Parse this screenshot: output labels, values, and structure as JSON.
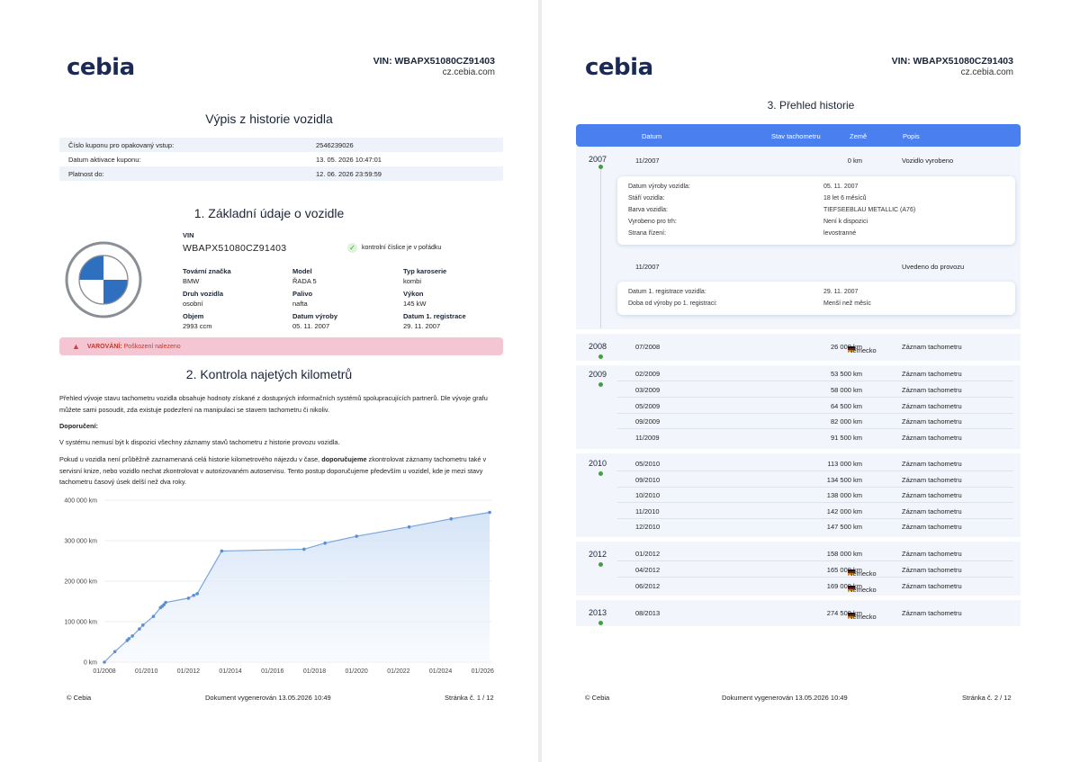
{
  "header": {
    "logo": "cebia",
    "vin_label": "VIN: WBAPX51080CZ91403",
    "url": "cz.cebia.com"
  },
  "page1": {
    "title": "Výpis z historie vozidla",
    "coupon": [
      {
        "key": "Číslo kuponu pro opakovaný vstup:",
        "value": "2546239026"
      },
      {
        "key": "Datum aktivace kuponu:",
        "value": "13. 05. 2026 10:47:01"
      },
      {
        "key": "Platnost do:",
        "value": "12. 06. 2026 23:59:59"
      }
    ],
    "section1_title": "1. Základní údaje o vozidle",
    "vin": {
      "label": "VIN",
      "value": "WBAPX51080CZ91403",
      "check": "kontrolní číslice je v pořádku"
    },
    "specs": [
      {
        "label": "Tovární značka",
        "value": "BMW"
      },
      {
        "label": "Model",
        "value": "ŘADA 5"
      },
      {
        "label": "Typ karoserie",
        "value": "kombi"
      },
      {
        "label": "Druh vozidla",
        "value": "osobní"
      },
      {
        "label": "Palivo",
        "value": "nafta"
      },
      {
        "label": "Výkon",
        "value": "145 kW"
      },
      {
        "label": "Objem",
        "value": "2993 ccm"
      },
      {
        "label": "Datum výroby",
        "value": "05. 11. 2007"
      },
      {
        "label": "Datum 1. registrace",
        "value": "29. 11. 2007"
      }
    ],
    "warning": {
      "prefix": "VAROVÁNÍ:",
      "text": " Poškození nalezeno"
    },
    "section2_title": "2. Kontrola najetých kilometrů",
    "para1": "Přehled vývoje stavu tachometru vozidla obsahuje hodnoty získané z dostupných informačních systémů spolupracujících partnerů. Dle vývoje grafu můžete sami posoudit, zda existuje podezření na manipulaci se stavem tachometru či nikoliv.",
    "recommend_label": "Doporučení:",
    "para2": "V systému nemusí být k dispozici všechny záznamy stavů tachometru z historie provozu vozidla.",
    "para3a": "Pokud u vozidla není průběžně zaznamenaná celá historie kilometrového nájezdu v čase, ",
    "para3b": "doporučujeme",
    "para3c": " zkontrolovat záznamy tachometru také v servisní knize, nebo vozidlo nechat zkontrolovat v autorizovaném autoservisu. Tento postup doporučujeme především u vozidel, kde je mezi stavy tachometru časový úsek delší než dva roky.",
    "footer_left": "© Cebia",
    "footer_mid": "Dokument vygenerován 13.05.2026 10:49",
    "footer_right": "Stránka č. 1 / 12"
  },
  "chart_data": {
    "type": "area",
    "title": "",
    "xlabel": "",
    "ylabel": "",
    "x_ticks": [
      "01/2008",
      "01/2010",
      "01/2012",
      "01/2014",
      "01/2016",
      "01/2018",
      "01/2020",
      "01/2022",
      "01/2024",
      "01/2026"
    ],
    "y_ticks": [
      "0 km",
      "100 000 km",
      "200 000 km",
      "300 000 km",
      "400 000 km"
    ],
    "ylim": [
      0,
      400000
    ],
    "xlim": [
      "2008-01",
      "2026-06"
    ],
    "grid": true,
    "series": [
      {
        "points": [
          {
            "x": "2008-01",
            "y": 0
          },
          {
            "x": "2008-07",
            "y": 26000
          },
          {
            "x": "2009-02",
            "y": 53500
          },
          {
            "x": "2009-03",
            "y": 58000
          },
          {
            "x": "2009-05",
            "y": 64500
          },
          {
            "x": "2009-09",
            "y": 82000
          },
          {
            "x": "2009-11",
            "y": 91500
          },
          {
            "x": "2010-05",
            "y": 113000
          },
          {
            "x": "2010-09",
            "y": 134500
          },
          {
            "x": "2010-10",
            "y": 138000
          },
          {
            "x": "2010-11",
            "y": 142000
          },
          {
            "x": "2010-12",
            "y": 147500
          },
          {
            "x": "2012-01",
            "y": 158000
          },
          {
            "x": "2012-04",
            "y": 165000
          },
          {
            "x": "2012-06",
            "y": 169000
          },
          {
            "x": "2013-08",
            "y": 274500
          },
          {
            "x": "2017-07",
            "y": 279000
          },
          {
            "x": "2018-07",
            "y": 294000
          },
          {
            "x": "2020-01",
            "y": 311000
          },
          {
            "x": "2022-07",
            "y": 334000
          },
          {
            "x": "2024-07",
            "y": 354000
          },
          {
            "x": "2026-05",
            "y": 370000
          }
        ]
      }
    ]
  },
  "page2": {
    "section3_title": "3. Přehled historie",
    "columns": {
      "date": "Datum",
      "km": "Stav tachometru",
      "country": "Země",
      "desc": "Popis"
    },
    "y2007": {
      "year": "2007",
      "row1": {
        "date": "11/2007",
        "km": "0 km",
        "country": "",
        "desc": "Vozidlo vyrobeno"
      },
      "card1": [
        {
          "k": "Datum výroby vozidla:",
          "v": "05. 11. 2007"
        },
        {
          "k": "Stáří vozidla:",
          "v": "18 let 6 měsíců"
        },
        {
          "k": "Barva vozidla:",
          "v": "TIEFSEEBLAU METALLIC (A76)"
        },
        {
          "k": "Vyrobeno pro trh:",
          "v": "Není k dispozici"
        },
        {
          "k": "Strana řízení:",
          "v": "levostranné"
        }
      ],
      "row2": {
        "date": "11/2007",
        "km": "",
        "country": "",
        "desc": "Uvedeno do provozu"
      },
      "card2": [
        {
          "k": "Datum 1. registrace vozidla:",
          "v": "29. 11. 2007"
        },
        {
          "k": "Doba od výroby po 1. registraci:",
          "v": "Menší než měsíc"
        }
      ]
    },
    "years": [
      {
        "year": "2008",
        "rows": [
          {
            "date": "07/2008",
            "km": "26 000 km",
            "country": "Německo",
            "desc": "Záznam tachometru"
          }
        ]
      },
      {
        "year": "2009",
        "rows": [
          {
            "date": "02/2009",
            "km": "53 500 km",
            "country": "",
            "desc": "Záznam tachometru"
          },
          {
            "date": "03/2009",
            "km": "58 000 km",
            "country": "",
            "desc": "Záznam tachometru"
          },
          {
            "date": "05/2009",
            "km": "64 500 km",
            "country": "",
            "desc": "Záznam tachometru"
          },
          {
            "date": "09/2009",
            "km": "82 000 km",
            "country": "",
            "desc": "Záznam tachometru"
          },
          {
            "date": "11/2009",
            "km": "91 500 km",
            "country": "",
            "desc": "Záznam tachometru"
          }
        ]
      },
      {
        "year": "2010",
        "rows": [
          {
            "date": "05/2010",
            "km": "113 000 km",
            "country": "",
            "desc": "Záznam tachometru"
          },
          {
            "date": "09/2010",
            "km": "134 500 km",
            "country": "",
            "desc": "Záznam tachometru"
          },
          {
            "date": "10/2010",
            "km": "138 000 km",
            "country": "",
            "desc": "Záznam tachometru"
          },
          {
            "date": "11/2010",
            "km": "142 000 km",
            "country": "",
            "desc": "Záznam tachometru"
          },
          {
            "date": "12/2010",
            "km": "147 500 km",
            "country": "",
            "desc": "Záznam tachometru"
          }
        ]
      },
      {
        "year": "2012",
        "rows": [
          {
            "date": "01/2012",
            "km": "158 000 km",
            "country": "",
            "desc": "Záznam tachometru"
          },
          {
            "date": "04/2012",
            "km": "165 000 km",
            "country": "Německo",
            "desc": "Záznam tachometru"
          },
          {
            "date": "06/2012",
            "km": "169 000 km",
            "country": "Německo",
            "desc": "Záznam tachometru"
          }
        ]
      },
      {
        "year": "2013",
        "rows": [
          {
            "date": "08/2013",
            "km": "274 500 km",
            "country": "Německo",
            "desc": "Záznam tachometru"
          }
        ]
      }
    ],
    "footer_left": "© Cebia",
    "footer_mid": "Dokument vygenerován 13.05.2026 10:49",
    "footer_right": "Stránka č. 2 / 12"
  }
}
